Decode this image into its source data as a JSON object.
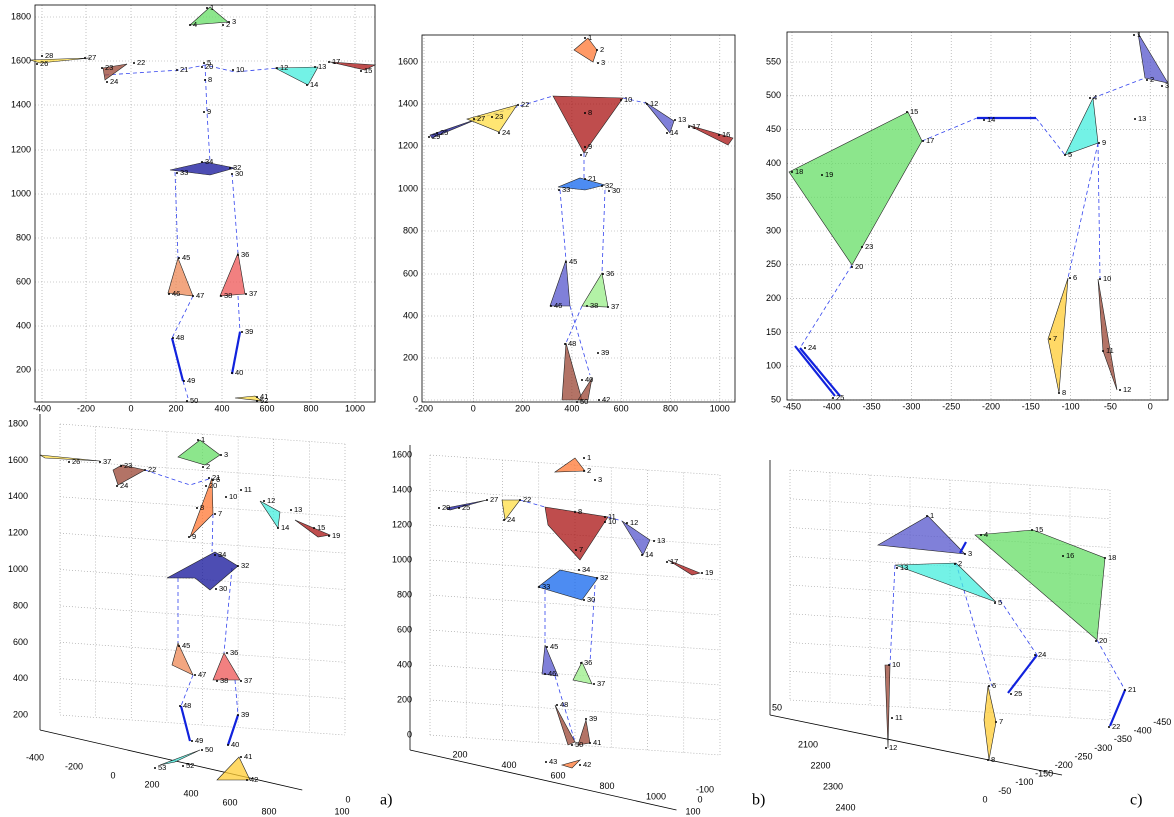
{
  "panels": [
    {
      "x_ticks": [
        "-400",
        "-200",
        "0",
        "200",
        "400",
        "600",
        "800",
        "1000"
      ],
      "y_ticks": [
        "1800",
        "1600",
        "1400",
        "1200",
        "1000",
        "800",
        "600",
        "400",
        "200"
      ],
      "markers": [
        "1",
        "2",
        "3",
        "4",
        "5",
        "8",
        "9",
        "10",
        "20",
        "21",
        "22",
        "24",
        "23",
        "27",
        "28",
        "26",
        "13",
        "14",
        "12",
        "15",
        "17",
        "34",
        "32",
        "33",
        "30",
        "45",
        "46",
        "47",
        "36",
        "38",
        "37",
        "39",
        "40",
        "48",
        "49",
        "50",
        "52",
        "41"
      ]
    },
    {
      "x_ticks": [
        "-200",
        "0",
        "200",
        "400",
        "600",
        "800",
        "1000"
      ],
      "y_ticks": [
        "1600",
        "1400",
        "1200",
        "1000",
        "800",
        "600",
        "400",
        "200",
        "0"
      ],
      "markers": [
        "1",
        "2",
        "3",
        "10",
        "12",
        "13",
        "14",
        "17",
        "16",
        "8",
        "9",
        "7",
        "22",
        "23",
        "24",
        "27",
        "29",
        "25",
        "21",
        "32",
        "33",
        "30",
        "45",
        "46",
        "36",
        "37",
        "38",
        "48",
        "39",
        "40",
        "42",
        "50"
      ]
    },
    {
      "x_ticks": [
        "-450",
        "-400",
        "-350",
        "-300",
        "-250",
        "-200",
        "-150",
        "-100",
        "-50",
        "0"
      ],
      "y_ticks": [
        "550",
        "500",
        "450",
        "400",
        "350",
        "300",
        "250",
        "200",
        "150",
        "100",
        "50"
      ],
      "markers": [
        "1",
        "2",
        "3",
        "4",
        "5",
        "9",
        "13",
        "14",
        "15",
        "17",
        "18",
        "19",
        "23",
        "20",
        "6",
        "7",
        "8",
        "10",
        "11",
        "12",
        "24",
        "25"
      ]
    },
    {
      "x_ticks": [
        "-400",
        "-200",
        "0",
        "200",
        "400",
        "600",
        "800"
      ],
      "y_ticks": [
        "1800",
        "1600",
        "1400",
        "1200",
        "1000",
        "800",
        "600",
        "400",
        "200"
      ],
      "z_ticks": [
        "0",
        "100"
      ],
      "markers": [
        "1",
        "3",
        "2",
        "37",
        "26",
        "22",
        "23",
        "24",
        "20",
        "21",
        "6",
        "10",
        "11",
        "12",
        "14",
        "13",
        "15",
        "19",
        "8",
        "9",
        "7",
        "34",
        "32",
        "30",
        "45",
        "47",
        "36",
        "37",
        "38",
        "48",
        "39",
        "49",
        "40",
        "50",
        "52",
        "53",
        "41",
        "42"
      ]
    },
    {
      "x_ticks": [
        "200",
        "400",
        "600",
        "800",
        "1000"
      ],
      "y_ticks": [
        "1600",
        "1400",
        "1200",
        "1000",
        "800",
        "600",
        "400",
        "200",
        "0"
      ],
      "z_ticks": [
        "-100",
        "0",
        "100"
      ],
      "markers": [
        "1",
        "3",
        "2",
        "27",
        "22",
        "24",
        "25",
        "29",
        "8",
        "11",
        "10",
        "12",
        "13",
        "14",
        "17",
        "19",
        "7",
        "34",
        "32",
        "33",
        "30",
        "45",
        "46",
        "36",
        "37",
        "48",
        "39",
        "50",
        "41",
        "42",
        "43"
      ]
    },
    {
      "x_ticks": [
        "2100",
        "2200",
        "2300",
        "2400"
      ],
      "y_ticks": [
        "50"
      ],
      "z_ticks": [
        "0",
        "-50",
        "-100",
        "-150",
        "-200",
        "-250",
        "-300",
        "-350",
        "-400",
        "-450"
      ],
      "markers": [
        "1",
        "3",
        "2",
        "4",
        "5",
        "13",
        "15",
        "16",
        "18",
        "20",
        "10",
        "11",
        "12",
        "6",
        "7",
        "8",
        "24",
        "25",
        "21",
        "22"
      ]
    }
  ],
  "panel_labels": [
    "a)",
    "b)",
    "c)"
  ]
}
